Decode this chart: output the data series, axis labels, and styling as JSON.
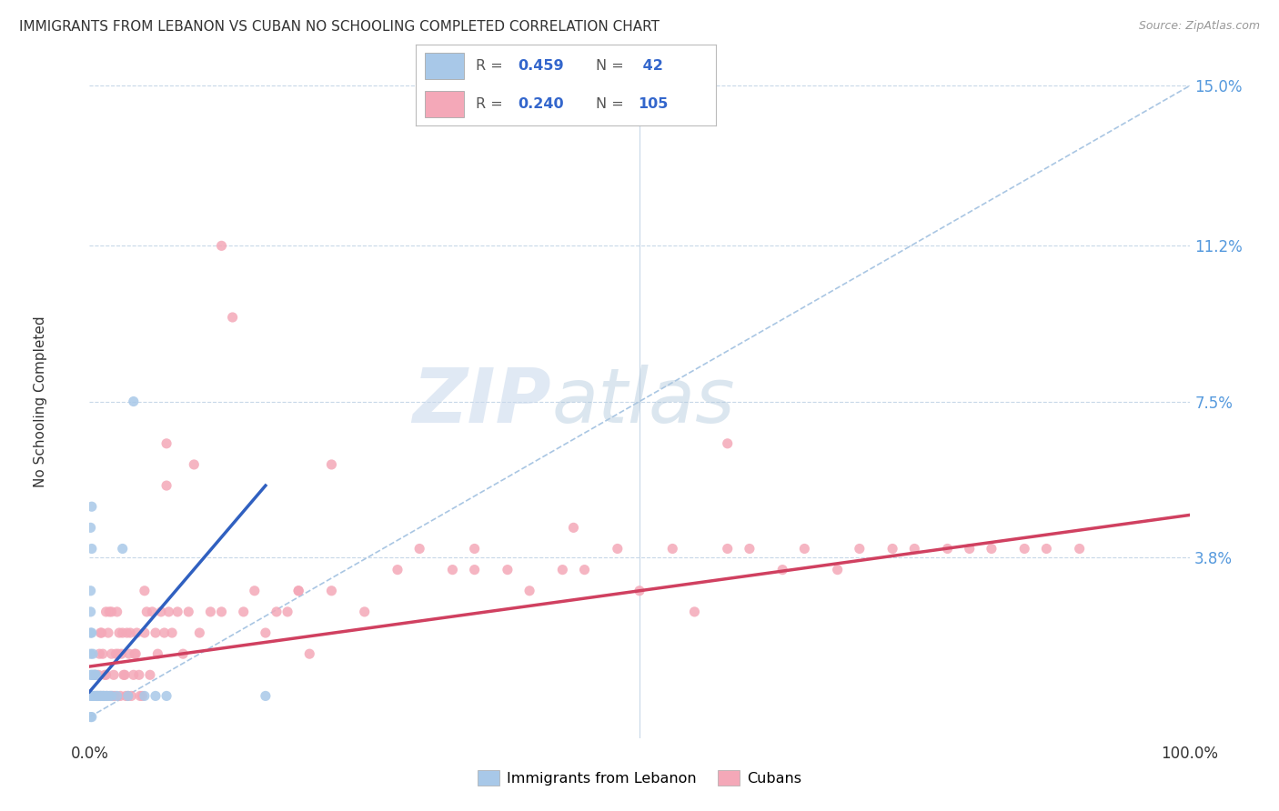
{
  "title": "IMMIGRANTS FROM LEBANON VS CUBAN NO SCHOOLING COMPLETED CORRELATION CHART",
  "source": "Source: ZipAtlas.com",
  "ylabel": "No Schooling Completed",
  "legend_label1": "Immigrants from Lebanon",
  "legend_label2": "Cubans",
  "r1": 0.459,
  "n1": 42,
  "r2": 0.24,
  "n2": 105,
  "color1": "#a8c8e8",
  "color2": "#f4a8b8",
  "trend_color1": "#3060c0",
  "trend_color2": "#d04060",
  "diag_color": "#a0c0e0",
  "xlim": [
    0,
    1.0
  ],
  "ylim": [
    -0.005,
    0.155
  ],
  "yticks": [
    0.0,
    0.038,
    0.075,
    0.112,
    0.15
  ],
  "ytick_labels": [
    "",
    "3.8%",
    "7.5%",
    "11.2%",
    "15.0%"
  ],
  "xticks": [
    0.0,
    1.0
  ],
  "xtick_labels": [
    "0.0%",
    "100.0%"
  ],
  "watermark_zip": "ZIP",
  "watermark_atlas": "atlas",
  "background": "#ffffff",
  "lebanon_x": [
    0.001,
    0.001,
    0.001,
    0.001,
    0.002,
    0.002,
    0.002,
    0.003,
    0.003,
    0.003,
    0.004,
    0.004,
    0.005,
    0.005,
    0.006,
    0.006,
    0.007,
    0.008,
    0.009,
    0.01,
    0.011,
    0.012,
    0.013,
    0.015,
    0.016,
    0.018,
    0.02,
    0.025,
    0.03,
    0.035,
    0.04,
    0.05,
    0.06,
    0.07,
    0.001,
    0.002,
    0.001,
    0.002,
    0.001,
    0.002,
    0.16,
    0.001
  ],
  "lebanon_y": [
    0.005,
    0.01,
    0.015,
    0.02,
    0.005,
    0.01,
    0.02,
    0.005,
    0.01,
    0.015,
    0.005,
    0.01,
    0.005,
    0.01,
    0.005,
    0.01,
    0.005,
    0.005,
    0.005,
    0.005,
    0.005,
    0.005,
    0.005,
    0.005,
    0.005,
    0.005,
    0.005,
    0.005,
    0.04,
    0.005,
    0.075,
    0.005,
    0.005,
    0.005,
    0.0,
    0.0,
    0.025,
    0.04,
    0.045,
    0.05,
    0.005,
    0.03
  ],
  "cuba_x": [
    0.005,
    0.007,
    0.008,
    0.009,
    0.01,
    0.01,
    0.011,
    0.012,
    0.013,
    0.014,
    0.015,
    0.015,
    0.016,
    0.017,
    0.018,
    0.019,
    0.02,
    0.02,
    0.021,
    0.022,
    0.023,
    0.024,
    0.025,
    0.026,
    0.027,
    0.028,
    0.029,
    0.03,
    0.031,
    0.032,
    0.033,
    0.034,
    0.035,
    0.036,
    0.037,
    0.038,
    0.04,
    0.041,
    0.042,
    0.043,
    0.045,
    0.046,
    0.048,
    0.05,
    0.052,
    0.055,
    0.057,
    0.06,
    0.062,
    0.065,
    0.068,
    0.07,
    0.072,
    0.075,
    0.08,
    0.085,
    0.09,
    0.095,
    0.1,
    0.11,
    0.12,
    0.13,
    0.14,
    0.15,
    0.16,
    0.17,
    0.18,
    0.19,
    0.2,
    0.22,
    0.25,
    0.28,
    0.3,
    0.33,
    0.35,
    0.38,
    0.4,
    0.43,
    0.45,
    0.48,
    0.5,
    0.53,
    0.55,
    0.58,
    0.6,
    0.63,
    0.65,
    0.68,
    0.7,
    0.73,
    0.75,
    0.78,
    0.8,
    0.82,
    0.85,
    0.87,
    0.9,
    0.12,
    0.58,
    0.35,
    0.22,
    0.07,
    0.05,
    0.19,
    0.44
  ],
  "cuba_y": [
    0.01,
    0.005,
    0.01,
    0.015,
    0.005,
    0.02,
    0.02,
    0.015,
    0.005,
    0.01,
    0.01,
    0.025,
    0.005,
    0.02,
    0.025,
    0.005,
    0.015,
    0.025,
    0.005,
    0.01,
    0.005,
    0.015,
    0.025,
    0.015,
    0.02,
    0.005,
    0.015,
    0.02,
    0.01,
    0.01,
    0.005,
    0.02,
    0.005,
    0.015,
    0.02,
    0.005,
    0.01,
    0.015,
    0.015,
    0.02,
    0.01,
    0.005,
    0.005,
    0.02,
    0.025,
    0.01,
    0.025,
    0.02,
    0.015,
    0.025,
    0.02,
    0.055,
    0.025,
    0.02,
    0.025,
    0.015,
    0.025,
    0.06,
    0.02,
    0.025,
    0.025,
    0.095,
    0.025,
    0.03,
    0.02,
    0.025,
    0.025,
    0.03,
    0.015,
    0.03,
    0.025,
    0.035,
    0.04,
    0.035,
    0.04,
    0.035,
    0.03,
    0.035,
    0.035,
    0.04,
    0.03,
    0.04,
    0.025,
    0.04,
    0.04,
    0.035,
    0.04,
    0.035,
    0.04,
    0.04,
    0.04,
    0.04,
    0.04,
    0.04,
    0.04,
    0.04,
    0.04,
    0.112,
    0.065,
    0.035,
    0.06,
    0.065,
    0.03,
    0.03,
    0.045
  ],
  "leb_trend_x": [
    0.0,
    0.16
  ],
  "leb_trend_y": [
    0.006,
    0.055
  ],
  "cuba_trend_x": [
    0.0,
    1.0
  ],
  "cuba_trend_y": [
    0.012,
    0.048
  ]
}
